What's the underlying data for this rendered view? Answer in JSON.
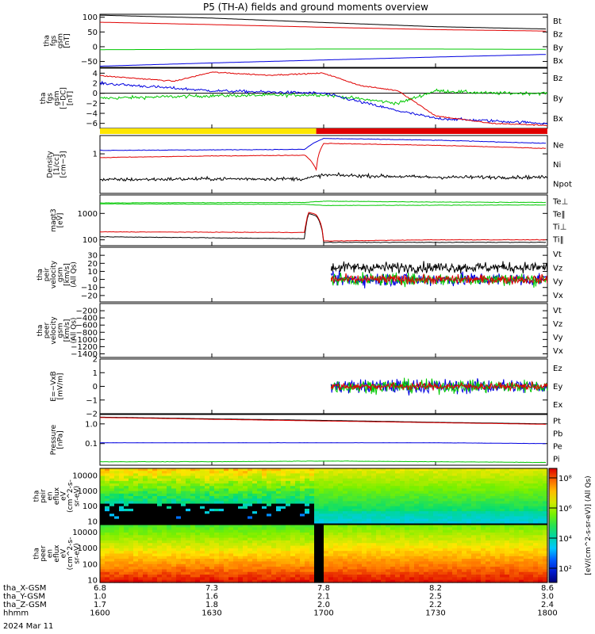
{
  "title": "P5 (TH-A) fields and ground moments overview",
  "colors": {
    "black": "#000000",
    "red": "#e00000",
    "green": "#00c800",
    "blue": "#0000e0",
    "yellow": "#ffe600",
    "flagRed": "#e00000"
  },
  "panels": [
    {
      "id": "fgs-gsm",
      "ylabel": [
        "tha",
        "fgs",
        "gsm",
        "[nT]"
      ],
      "ylim": [
        -70,
        110
      ],
      "yticks": [
        {
          "v": 100,
          "l": "100"
        },
        {
          "v": 50,
          "l": "50"
        },
        {
          "v": 0,
          "l": "0"
        },
        {
          "v": -50,
          "l": "−50"
        }
      ],
      "legend": [
        {
          "l": "Bt",
          "c": "black"
        },
        {
          "l": "Bz",
          "c": "red"
        },
        {
          "l": "By",
          "c": "green"
        },
        {
          "l": "Bx",
          "c": "blue"
        }
      ]
    },
    {
      "id": "fgs-gsm-dc",
      "ylabel": [
        "tha",
        "fgs",
        "gsm",
        "[−DC]",
        "[nT]"
      ],
      "ylim": [
        -7,
        5
      ],
      "yticks": [
        {
          "v": 4,
          "l": "4"
        },
        {
          "v": 2,
          "l": "2"
        },
        {
          "v": 0,
          "l": "0"
        },
        {
          "v": -2,
          "l": "−2"
        },
        {
          "v": -4,
          "l": "−4"
        },
        {
          "v": -6,
          "l": "−6"
        }
      ],
      "legend": [
        {
          "l": "Bz",
          "c": "red"
        },
        {
          "l": "By",
          "c": "green"
        },
        {
          "l": "Bx",
          "c": "blue"
        }
      ]
    },
    {
      "id": "density",
      "ylabel": [
        "Density",
        "[1/cc]",
        "[cm−3]"
      ],
      "ylim": [
        0.05,
        4
      ],
      "log": true,
      "yticks": [
        {
          "v": 1,
          "l": "1"
        }
      ],
      "legend": [
        {
          "l": "Ne",
          "c": "red"
        },
        {
          "l": "Ni",
          "c": "black"
        },
        {
          "l": "Npot",
          "c": "blue"
        }
      ]
    },
    {
      "id": "temp",
      "ylabel": [
        "magt3",
        "[eV]"
      ],
      "ylim": [
        60,
        5000
      ],
      "log": true,
      "yticks": [
        {
          "v": 1000,
          "l": "1000"
        },
        {
          "v": 100,
          "l": "100"
        }
      ],
      "legend": [
        {
          "l": "Te⊥",
          "c": "red"
        },
        {
          "l": "Te‖",
          "c": "black"
        },
        {
          "l": "Ti⊥",
          "c": "green"
        },
        {
          "l": "Ti‖",
          "c": "green"
        }
      ]
    },
    {
      "id": "peir-vel",
      "ylabel": [
        "tha",
        "peir",
        "velocity",
        "gsm",
        "[km/s]",
        "(All Qs)"
      ],
      "ylim": [
        -28,
        40
      ],
      "yticks": [
        {
          "v": 30,
          "l": "30"
        },
        {
          "v": 20,
          "l": "20"
        },
        {
          "v": 10,
          "l": "10"
        },
        {
          "v": 0,
          "l": "0"
        },
        {
          "v": -10,
          "l": "−10"
        },
        {
          "v": -20,
          "l": "−20"
        }
      ],
      "legend": [
        {
          "l": "Vt",
          "c": "black"
        },
        {
          "l": "Vz",
          "c": "red"
        },
        {
          "l": "Vy",
          "c": "green"
        },
        {
          "l": "Vx",
          "c": "blue"
        }
      ]
    },
    {
      "id": "peer-vel",
      "ylabel": [
        "tha",
        "peer",
        "velocity",
        "gsm",
        "[km/s]",
        "(All Qs)"
      ],
      "ylim": [
        -1500,
        0
      ],
      "yticks": [
        {
          "v": -200,
          "l": "−200"
        },
        {
          "v": -400,
          "l": "−400"
        },
        {
          "v": -600,
          "l": "−600"
        },
        {
          "v": -800,
          "l": "−800"
        },
        {
          "v": -1000,
          "l": "−1000"
        },
        {
          "v": -1200,
          "l": "−1200"
        },
        {
          "v": -1400,
          "l": "−1400"
        }
      ],
      "legend": [
        {
          "l": "Vt",
          "c": "black"
        },
        {
          "l": "Vz",
          "c": "red"
        },
        {
          "l": "Vy",
          "c": "green"
        },
        {
          "l": "Vx",
          "c": "blue"
        }
      ]
    },
    {
      "id": "efield",
      "ylabel": [
        "E=−VxB",
        "[mV/m]"
      ],
      "ylim": [
        -2,
        2
      ],
      "yticks": [
        {
          "v": 2,
          "l": "2"
        },
        {
          "v": 1,
          "l": "1"
        },
        {
          "v": 0,
          "l": "0"
        },
        {
          "v": -1,
          "l": "−1"
        },
        {
          "v": -2,
          "l": "−2"
        }
      ],
      "legend": [
        {
          "l": "Ez",
          "c": "red"
        },
        {
          "l": "Ey",
          "c": "green"
        },
        {
          "l": "Ex",
          "c": "blue"
        }
      ]
    },
    {
      "id": "pressure",
      "ylabel": [
        "Pressure",
        "[nPa]"
      ],
      "ylim": [
        0.008,
        3
      ],
      "log": true,
      "yticks": [
        {
          "v": 1,
          "l": "1.0"
        },
        {
          "v": 0.1,
          "l": "0.1"
        }
      ],
      "legend": [
        {
          "l": "Pt",
          "c": "black"
        },
        {
          "l": "Pb",
          "c": "red"
        },
        {
          "l": "Pe",
          "c": "green"
        },
        {
          "l": "Pi",
          "c": "blue"
        }
      ]
    },
    {
      "id": "peir-spec",
      "ylabel": [
        "tha",
        "peir",
        "en",
        "eflux",
        "eV",
        "(cm^2-s-",
        "sr-eV)"
      ],
      "ylim": [
        7,
        30000
      ],
      "log": true,
      "yticks": [
        {
          "v": 10000,
          "l": "10000"
        },
        {
          "v": 1000,
          "l": "1000"
        },
        {
          "v": 100,
          "l": "100"
        },
        {
          "v": 10,
          "l": "10"
        }
      ]
    },
    {
      "id": "peer-spec",
      "ylabel": [
        "tha",
        "peer",
        "en",
        "eflux",
        "eV",
        "(cm^2-s-",
        "sr-eV)"
      ],
      "ylim": [
        7,
        30000
      ],
      "log": true,
      "yticks": [
        {
          "v": 10000,
          "l": "10000"
        },
        {
          "v": 1000,
          "l": "1000"
        },
        {
          "v": 100,
          "l": "100"
        },
        {
          "v": 10,
          "l": "10"
        }
      ]
    }
  ],
  "colorbar": {
    "ticks": [
      "10⁸",
      "10⁶",
      "10⁴",
      "10²"
    ],
    "label": "[eV/(cm^2-s-sr-eV)] (All Qs)"
  },
  "footer": {
    "rows": [
      {
        "label": "tha_X-GSM",
        "values": [
          "6.8",
          "7.3",
          "7.8",
          "8.2",
          "8.6"
        ]
      },
      {
        "label": "tha_Y-GSM",
        "values": [
          "1.0",
          "1.6",
          "2.1",
          "2.5",
          "3.0"
        ]
      },
      {
        "label": "tha_Z-GSM",
        "values": [
          "1.7",
          "1.8",
          "2.0",
          "2.2",
          "2.4"
        ]
      },
      {
        "label": "hhmm",
        "values": [
          "1600",
          "1630",
          "1700",
          "1730",
          "1800"
        ]
      }
    ],
    "date": "2024 Mar 11"
  },
  "chart_data": {
    "type": "line",
    "title": "P5 (TH-A) fields and ground moments overview",
    "x_unit": "hhmm",
    "x_ticks": [
      "1600",
      "1630",
      "1700",
      "1730",
      "1800"
    ],
    "xlim": [
      "1600",
      "1800"
    ],
    "series": [
      {
        "name": "Bt",
        "panel": "fgs-gsm",
        "x": [
          "1600",
          "1630",
          "1700",
          "1730",
          "1800"
        ],
        "y": [
          107,
          97,
          82,
          68,
          60
        ]
      },
      {
        "name": "Bz",
        "panel": "fgs-gsm",
        "x": [
          "1600",
          "1630",
          "1700",
          "1730",
          "1800"
        ],
        "y": [
          83,
          75,
          66,
          58,
          53
        ]
      },
      {
        "name": "By",
        "panel": "fgs-gsm",
        "x": [
          "1600",
          "1630",
          "1700",
          "1730",
          "1800"
        ],
        "y": [
          -10,
          -9,
          -8,
          -8,
          -9
        ]
      },
      {
        "name": "Bx",
        "panel": "fgs-gsm",
        "x": [
          "1600",
          "1630",
          "1700",
          "1730",
          "1800"
        ],
        "y": [
          -66,
          -55,
          -45,
          -35,
          -26
        ]
      },
      {
        "name": "Bz",
        "panel": "fgs-gsm-dc",
        "x": [
          "1600",
          "1620",
          "1630",
          "1645",
          "1700",
          "1710",
          "1720",
          "1730",
          "1745",
          "1800"
        ],
        "y": [
          3.5,
          2.4,
          4.2,
          3.6,
          4.0,
          1.5,
          0.5,
          -4.5,
          -6.0,
          -6.4
        ]
      },
      {
        "name": "By",
        "panel": "fgs-gsm-dc",
        "x": [
          "1600",
          "1630",
          "1700",
          "1720",
          "1730",
          "1745",
          "1800"
        ],
        "y": [
          -1.0,
          -0.5,
          -0.3,
          -2.0,
          0.5,
          0.0,
          0.0
        ]
      },
      {
        "name": "Bx",
        "panel": "fgs-gsm-dc",
        "x": [
          "1600",
          "1630",
          "1700",
          "1720",
          "1730",
          "1745",
          "1800"
        ],
        "y": [
          2.0,
          0.5,
          0.0,
          -3.5,
          -5.0,
          -5.5,
          -6.0
        ]
      },
      {
        "name": "Ne",
        "panel": "density",
        "x": [
          "1600",
          "1630",
          "1655",
          "1658",
          "1700",
          "1730",
          "1800"
        ],
        "y": [
          0.75,
          0.85,
          0.9,
          0.3,
          2.2,
          1.9,
          1.5
        ]
      },
      {
        "name": "Ni",
        "panel": "density",
        "x": [
          "1600",
          "1630",
          "1655",
          "1700",
          "1730",
          "1800"
        ],
        "y": [
          0.14,
          0.15,
          0.15,
          0.2,
          0.17,
          0.17
        ]
      },
      {
        "name": "Npot",
        "panel": "density",
        "x": [
          "1600",
          "1630",
          "1655",
          "1700",
          "1730",
          "1800"
        ],
        "y": [
          1.3,
          1.35,
          1.4,
          3.2,
          2.8,
          2.2
        ]
      },
      {
        "name": "Te⊥",
        "panel": "temp",
        "x": [
          "1600",
          "1655",
          "1656",
          "1658",
          "1700",
          "1730",
          "1800"
        ],
        "y": [
          200,
          190,
          1100,
          900,
          90,
          100,
          100
        ]
      },
      {
        "name": "Te‖",
        "panel": "temp",
        "x": [
          "1600",
          "1655",
          "1656",
          "1658",
          "1700",
          "1730",
          "1800"
        ],
        "y": [
          130,
          110,
          1000,
          800,
          80,
          80,
          80
        ]
      },
      {
        "name": "Ti⊥",
        "panel": "temp",
        "x": [
          "1600",
          "1655",
          "1700",
          "1730",
          "1800"
        ],
        "y": [
          2500,
          2600,
          2900,
          2700,
          2600
        ]
      },
      {
        "name": "Ti‖",
        "panel": "temp",
        "x": [
          "1600",
          "1655",
          "1700",
          "1730",
          "1800"
        ],
        "y": [
          2300,
          2200,
          2000,
          2050,
          2100
        ]
      },
      {
        "name": "Vt",
        "panel": "peir-vel",
        "x": [
          "1702",
          "1730",
          "1800"
        ],
        "y": [
          15,
          15,
          15
        ]
      },
      {
        "name": "Vz",
        "panel": "peir-vel",
        "x": [
          "1702",
          "1730",
          "1800"
        ],
        "y": [
          0,
          0,
          0
        ]
      },
      {
        "name": "E",
        "panel": "efield",
        "x": [
          "1702",
          "1730",
          "1800"
        ],
        "y": [
          0,
          0,
          0
        ]
      },
      {
        "name": "Pt",
        "panel": "pressure",
        "x": [
          "1600",
          "1630",
          "1700",
          "1730",
          "1800"
        ],
        "y": [
          2.2,
          1.8,
          1.5,
          1.2,
          1.0
        ]
      },
      {
        "name": "Pb",
        "panel": "pressure",
        "x": [
          "1600",
          "1630",
          "1700",
          "1730",
          "1800"
        ],
        "y": [
          2.1,
          1.7,
          1.4,
          1.15,
          0.95
        ]
      },
      {
        "name": "Pe",
        "panel": "pressure",
        "x": [
          "1600",
          "1630",
          "1700",
          "1730",
          "1800"
        ],
        "y": [
          0.11,
          0.11,
          0.11,
          0.11,
          0.1
        ]
      },
      {
        "name": "Pi",
        "panel": "pressure",
        "x": [
          "1600",
          "1630",
          "1700",
          "1730",
          "1800"
        ],
        "y": [
          0.012,
          0.012,
          0.013,
          0.012,
          0.011
        ]
      }
    ]
  }
}
